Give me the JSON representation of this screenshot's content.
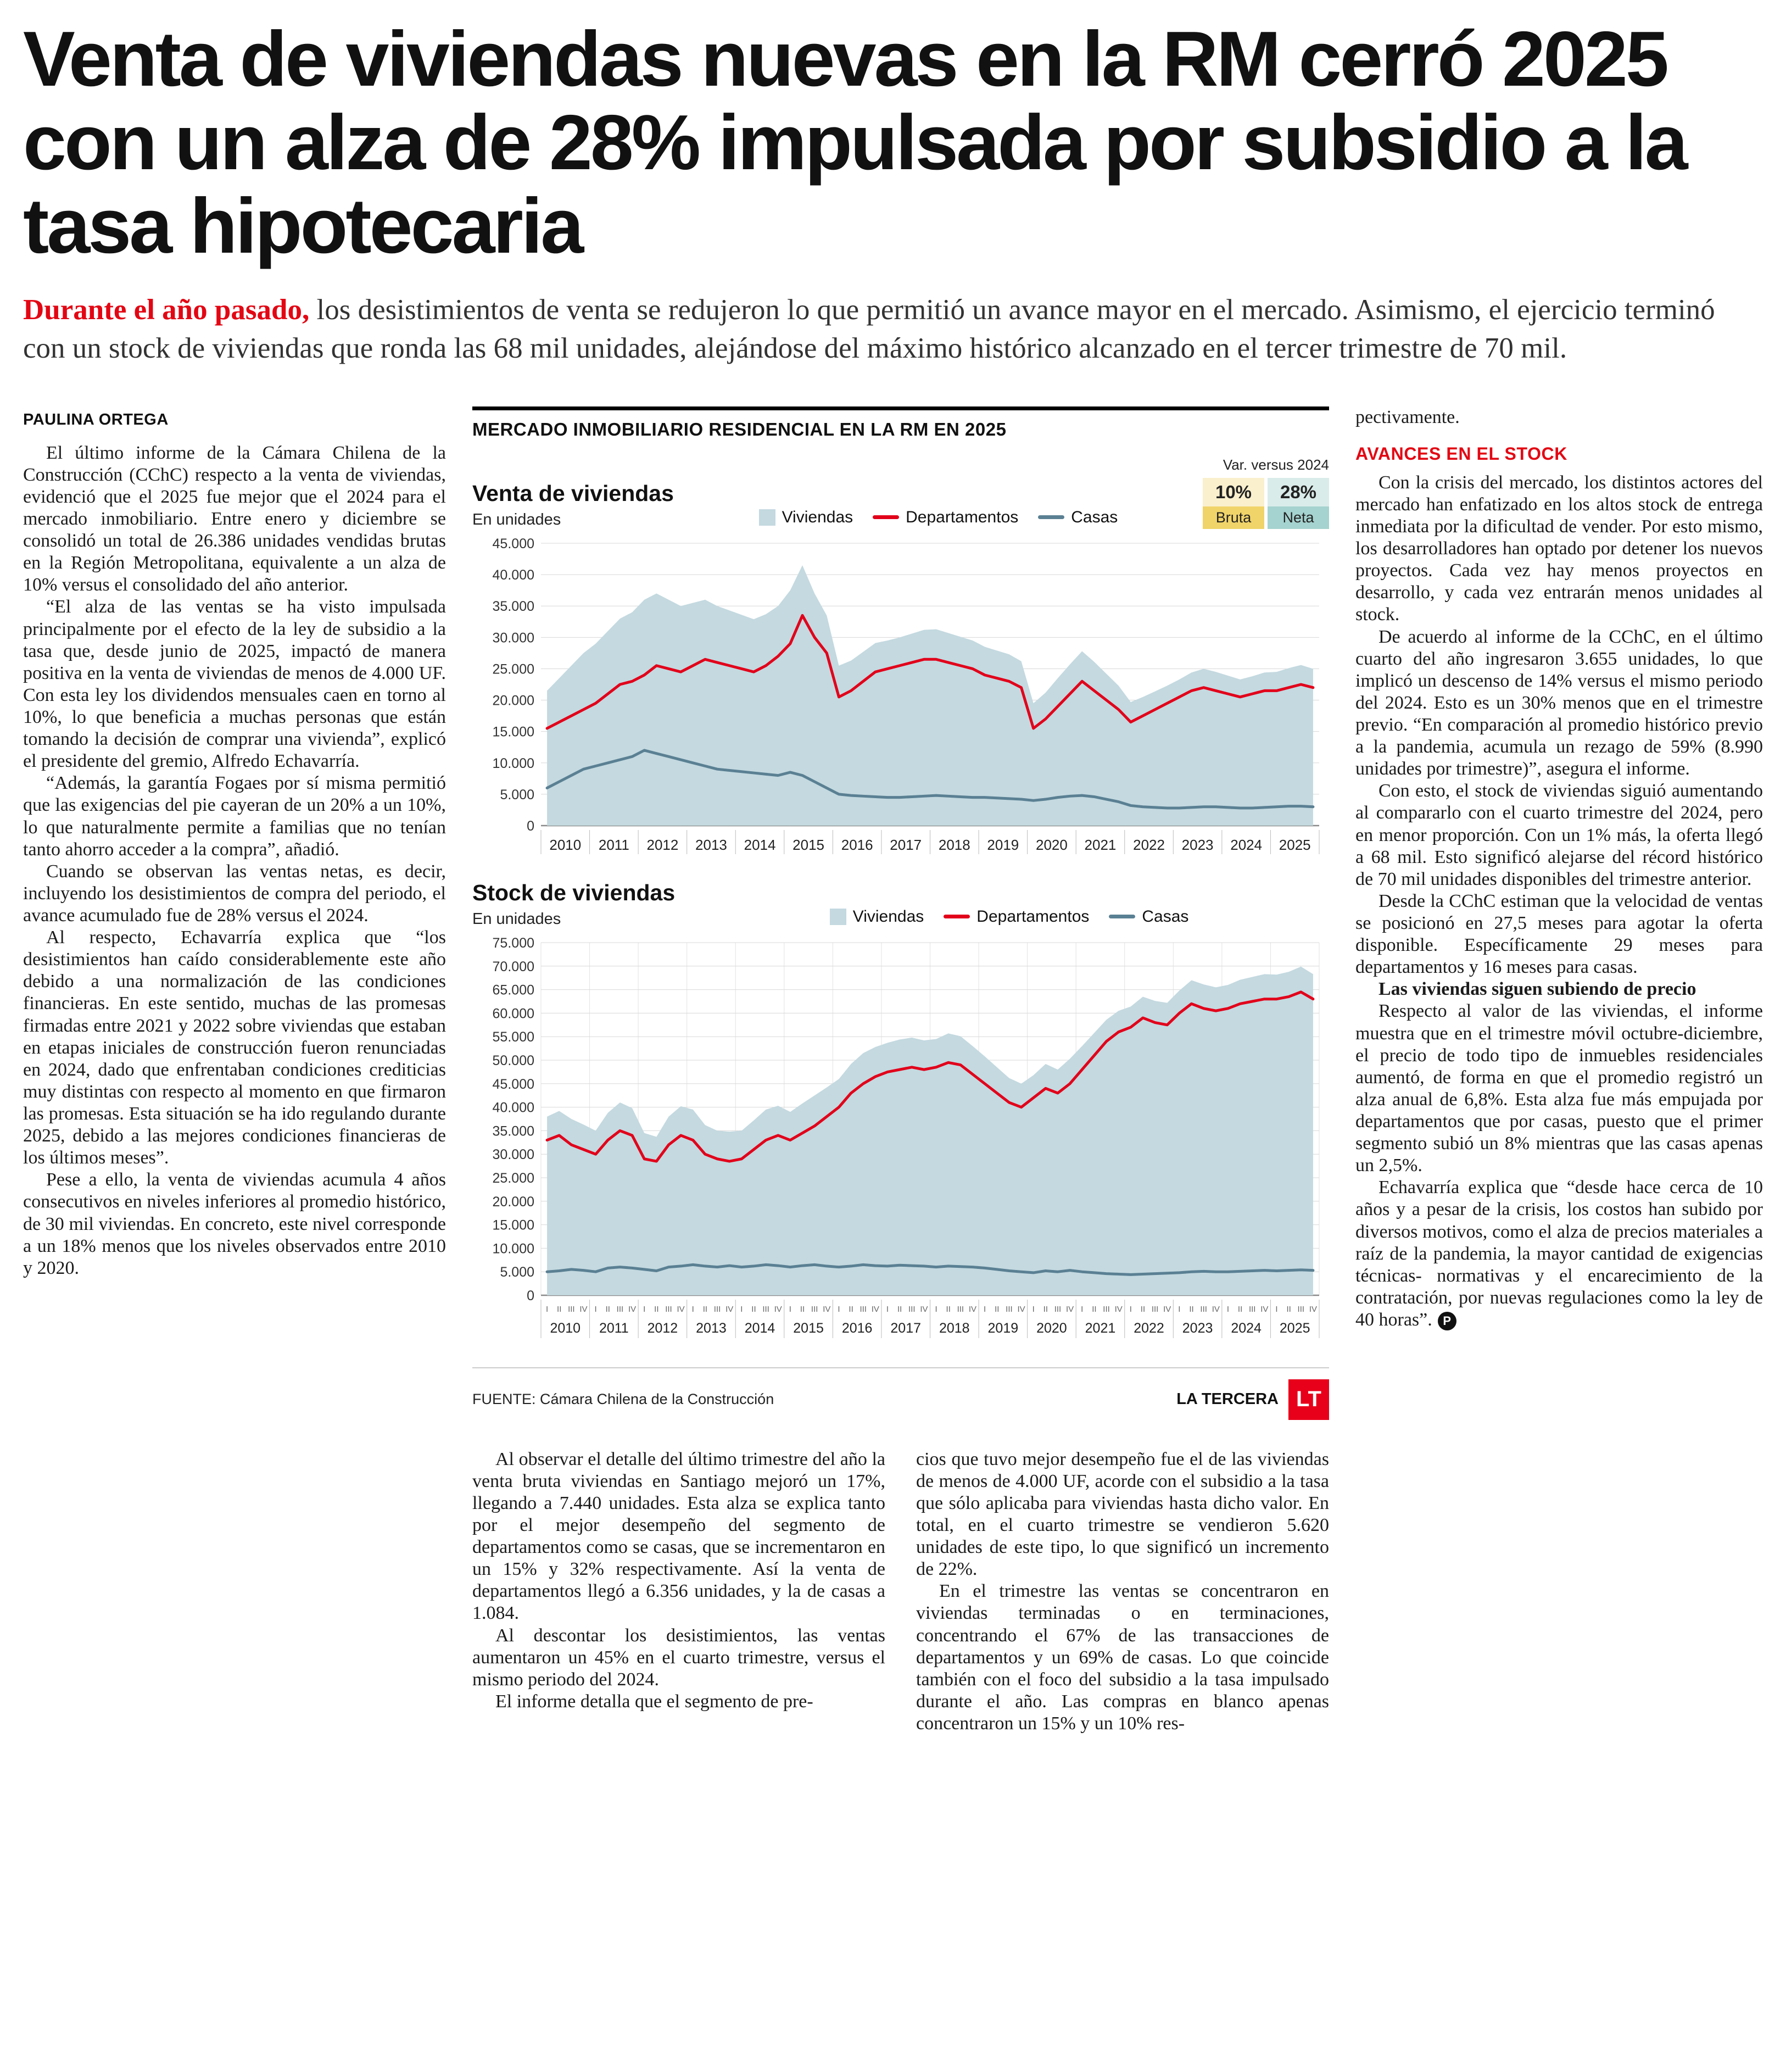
{
  "headline": "Venta de viviendas nuevas en la RM cerró 2025 con un alza de 28% impulsada por subsidio a la tasa hipotecaria",
  "lede": {
    "lead_in": "Durante el año pasado,",
    "text": " los desistimientos de venta se redujeron lo que permitió un avance mayor en el mercado. Asimismo, el ejercicio terminó con un stock de viviendas que ronda las 68 mil unidades, alejándose del máximo histórico alcanzado en el tercer trimestre de 70 mil."
  },
  "byline": "PAULINA ORTEGA",
  "colors": {
    "accent_red": "#e30613",
    "area": "#c4d9e0",
    "departamentos": "#e2001a",
    "casas": "#5a8093",
    "badge_bruta": "#f0d469",
    "badge_bruta_light": "#faf0cd",
    "badge_neta": "#a5d3cf",
    "badge_neta_light": "#daecea",
    "logo_red": "#e8001b"
  },
  "article": {
    "left_column": [
      "El último informe de la Cámara Chilena de la Construcción (CChC) respecto a la venta de viviendas, evidenció que el 2025 fue mejor que el 2024 para el mercado inmobiliario. Entre enero y diciembre se consolidó un total de 26.386 unidades vendidas brutas en la Región Metropolitana, equivalente a un alza de 10% versus el consolidado del año anterior.",
      "“El alza de las ventas se ha visto impulsada principalmente por el efecto de la ley de subsidio a la tasa que, desde junio de 2025, impactó de manera positiva en la venta de viviendas de menos de 4.000 UF. Con esta ley los dividendos mensuales caen en torno al 10%, lo que beneficia a muchas personas que están tomando la decisión de comprar una vivienda”, explicó el presidente del gremio, Alfredo Echavarría.",
      "“Además, la garantía Fogaes por sí misma permitió que las exigencias del pie cayeran de un 20% a un 10%, lo que naturalmente permite a familias que no tenían tanto ahorro acceder a la compra”, añadió.",
      "Cuando se observan las ventas netas, es decir, incluyendo los desistimientos de compra del periodo, el avance acumulado fue de 28% versus el 2024.",
      "Al respecto, Echavarría explica que “los desistimientos han caído considerablemente este año debido a una normalización de las condiciones financieras. En este sentido, muchas de las promesas firmadas entre 2021 y 2022 sobre viviendas que estaban en etapas iniciales de construcción fueron renunciadas en 2024, dado que enfrentaban condiciones crediticias muy distintas con respecto al momento en que firmaron las promesas. Esta situación se ha ido regulando durante 2025, debido a las mejores condiciones financieras de los últimos meses”.",
      "Pese a ello, la venta de viviendas acumula 4 años consecutivos en niveles inferiores al promedio histórico, de 30 mil viviendas. En concreto, este nivel corresponde a un 18% menos que los niveles observados entre 2010 y 2020."
    ],
    "bottom_col1": [
      "Al observar el detalle del último trimestre del año la venta bruta viviendas en Santiago mejoró un 17%, llegando a 7.440 unidades. Esta alza se explica tanto por el mejor desempeño del segmento de departamentos como se casas, que se incrementaron en un 15% y 32% respectivamente. Así la venta de departamentos llegó a 6.356 unidades, y la de casas a 1.084.",
      "Al descontar los desistimientos, las ventas aumentaron un 45% en el cuarto trimestre, versus el mismo periodo del 2024.",
      "El informe detalla que el segmento de pre-"
    ],
    "bottom_col2": [
      "cios que tuvo mejor desempeño fue el de las viviendas de menos de 4.000 UF, acorde con el subsidio a la tasa que sólo aplicaba para viviendas hasta dicho valor. En total, en el cuarto trimestre se vendieron 5.620 unidades de este tipo, lo que significó un incremento de 22%.",
      "En el trimestre las ventas se concentraron en viviendas terminadas o en terminaciones, concentrando el 67% de las transacciones de departamentos y un 69% de casas. Lo que coincide también con el foco del subsidio a la tasa impulsado durante el año. Las compras en blanco apenas concentraron un 15% y un 10% res-"
    ],
    "right_column": {
      "continuation": "pectivamente.",
      "subhead": "AVANCES EN EL STOCK",
      "paragraphs_a": [
        "Con la crisis del mercado, los distintos actores del mercado han enfatizado en los altos stock de entrega inmediata por la dificultad de vender. Por esto mismo, los desarrolladores han optado por detener los nuevos proyectos. Cada vez hay menos proyectos en desarrollo, y cada vez entrarán menos unidades al stock.",
        "De acuerdo al informe de la CChC, en el último cuarto del año ingresaron 3.655 unidades, lo que implicó un descenso de 14% versus el mismo periodo del 2024. Esto es un 30% menos que en el trimestre previo. “En comparación al promedio histórico previo a la pandemia, acumula un rezago de 59% (8.990 unidades por trimestre)”, asegura el informe.",
        "Con esto, el stock de viviendas siguió aumentando al compararlo con el cuarto trimestre del 2024, pero en menor proporción. Con un 1% más, la oferta llegó a 68 mil. Esto significó alejarse del récord histórico de 70 mil unidades disponibles del trimestre anterior.",
        "Desde la CChC estiman que la velocidad de ventas se posicionó en 27,5 meses para agotar la oferta disponible. Específicamente 29 meses para departamentos y 16 meses para casas."
      ],
      "mini_subhead": "Las viviendas siguen subiendo de precio",
      "paragraphs_b": [
        "Respecto al valor de las viviendas, el informe muestra que en el trimestre móvil octubre-diciembre, el precio de todo tipo de inmuebles residenciales aumentó, de forma en que el promedio registró un alza anual de 6,8%. Esta alza fue más empujada por departamentos que por casas, puesto que el primer segmento subió un 8% mientras que las casas apenas un 2,5%.",
        "Echavarría explica que “desde hace cerca de 10 años y a pesar de la crisis, los costos han subido por diversos motivos, como el alza de precios materiales a raíz de la pandemia, la mayor cantidad de exigencias técnicas- normativas y el encarecimiento de la contratación, por nuevas regulaciones como la ley de 40 horas”."
      ],
      "end_mark": "P"
    }
  },
  "infographic": {
    "title": "MERCADO INMOBILIARIO RESIDENCIAL EN LA RM EN 2025",
    "var_badge": {
      "label": "Var. versus 2024",
      "bruta_value": "10%",
      "bruta_label": "Bruta",
      "neta_value": "28%",
      "neta_label": "Neta"
    },
    "source": "FUENTE: Cámara Chilena de la Construcción",
    "credit": "LA TERCERA",
    "logo": "LT"
  },
  "chart_data": [
    {
      "type": "area",
      "title": "Venta de viviendas",
      "subtitle": "En unidades",
      "quarter_ticks": false,
      "ylim": [
        0,
        45000
      ],
      "ytick_step": 5000,
      "x_years": [
        "2010",
        "2011",
        "2012",
        "2013",
        "2014",
        "2015",
        "2016",
        "2017",
        "2018",
        "2019",
        "2020",
        "2021",
        "2022",
        "2023",
        "2024",
        "2025"
      ],
      "legend": [
        {
          "name": "Viviendas",
          "type": "area",
          "color": "#c4d9e0"
        },
        {
          "name": "Departamentos",
          "type": "line",
          "color": "#e2001a"
        },
        {
          "name": "Casas",
          "type": "line",
          "color": "#5a8093"
        }
      ],
      "series": {
        "viviendas": [
          21500,
          23500,
          25500,
          27500,
          29000,
          31000,
          33000,
          34000,
          36000,
          37000,
          36000,
          35000,
          35500,
          36000,
          35000,
          34300,
          33600,
          32900,
          33700,
          35000,
          37500,
          41500,
          37000,
          33500,
          25500,
          26300,
          27700,
          29100,
          29500,
          30000,
          30600,
          31200,
          31300,
          30700,
          30100,
          29500,
          28500,
          27900,
          27300,
          26200,
          19500,
          21200,
          23500,
          25700,
          27800,
          26100,
          24200,
          22300,
          19700,
          20500,
          21400,
          22300,
          23300,
          24400,
          25000,
          24500,
          23900,
          23300,
          23800,
          24400,
          24500,
          25100,
          25600,
          25000
        ],
        "departamentos": [
          15500,
          16500,
          17500,
          18500,
          19500,
          21000,
          22500,
          23000,
          24000,
          25500,
          25000,
          24500,
          25500,
          26500,
          26000,
          25500,
          25000,
          24500,
          25500,
          27000,
          29000,
          33500,
          30000,
          27500,
          20500,
          21500,
          23000,
          24500,
          25000,
          25500,
          26000,
          26500,
          26500,
          26000,
          25500,
          25000,
          24000,
          23500,
          23000,
          22000,
          15500,
          17000,
          19000,
          21000,
          23000,
          21500,
          20000,
          18500,
          16500,
          17500,
          18500,
          19500,
          20500,
          21500,
          22000,
          21500,
          21000,
          20500,
          21000,
          21500,
          21500,
          22000,
          22500,
          22000
        ],
        "casas": [
          6000,
          7000,
          8000,
          9000,
          9500,
          10000,
          10500,
          11000,
          12000,
          11500,
          11000,
          10500,
          10000,
          9500,
          9000,
          8800,
          8600,
          8400,
          8200,
          8000,
          8500,
          8000,
          7000,
          6000,
          5000,
          4800,
          4700,
          4600,
          4500,
          4500,
          4600,
          4700,
          4800,
          4700,
          4600,
          4500,
          4500,
          4400,
          4300,
          4200,
          4000,
          4200,
          4500,
          4700,
          4800,
          4600,
          4200,
          3800,
          3200,
          3000,
          2900,
          2800,
          2800,
          2900,
          3000,
          3000,
          2900,
          2800,
          2800,
          2900,
          3000,
          3100,
          3100,
          3000
        ]
      }
    },
    {
      "type": "area",
      "title": "Stock de viviendas",
      "subtitle": "En unidades",
      "quarter_ticks": true,
      "ylim": [
        0,
        75000
      ],
      "ytick_step": 5000,
      "x_years": [
        "2010",
        "2011",
        "2012",
        "2013",
        "2014",
        "2015",
        "2016",
        "2017",
        "2018",
        "2019",
        "2020",
        "2021",
        "2022",
        "2023",
        "2024",
        "2025"
      ],
      "legend": [
        {
          "name": "Viviendas",
          "type": "area",
          "color": "#c4d9e0"
        },
        {
          "name": "Departamentos",
          "type": "line",
          "color": "#e2001a"
        },
        {
          "name": "Casas",
          "type": "line",
          "color": "#5a8093"
        }
      ],
      "series": {
        "viviendas": [
          38000,
          39200,
          37500,
          36300,
          35000,
          38800,
          41000,
          39800,
          34500,
          33700,
          38000,
          40200,
          39500,
          36200,
          35000,
          34800,
          35000,
          37200,
          39500,
          40300,
          39000,
          40800,
          42500,
          44200,
          46000,
          49200,
          51500,
          52800,
          53700,
          54400,
          54800,
          54200,
          54500,
          55700,
          55100,
          53000,
          50800,
          48500,
          46200,
          45000,
          46800,
          49200,
          48000,
          50300,
          53000,
          55800,
          58600,
          60500,
          61400,
          63500,
          62600,
          62200,
          64800,
          67000,
          66100,
          65500,
          66000,
          67100,
          67700,
          68300,
          68200,
          68800,
          69900,
          68300
        ],
        "departamentos": [
          33000,
          34000,
          32000,
          31000,
          30000,
          33000,
          35000,
          34000,
          29000,
          28500,
          32000,
          34000,
          33000,
          30000,
          29000,
          28500,
          29000,
          31000,
          33000,
          34000,
          33000,
          34500,
          36000,
          38000,
          40000,
          43000,
          45000,
          46500,
          47500,
          48000,
          48500,
          48000,
          48500,
          49500,
          49000,
          47000,
          45000,
          43000,
          41000,
          40000,
          42000,
          44000,
          43000,
          45000,
          48000,
          51000,
          54000,
          56000,
          57000,
          59000,
          58000,
          57500,
          60000,
          62000,
          61000,
          60500,
          61000,
          62000,
          62500,
          63000,
          63000,
          63500,
          64500,
          63000
        ],
        "casas": [
          5000,
          5200,
          5500,
          5300,
          5000,
          5800,
          6000,
          5800,
          5500,
          5200,
          6000,
          6200,
          6500,
          6200,
          6000,
          6300,
          6000,
          6200,
          6500,
          6300,
          6000,
          6300,
          6500,
          6200,
          6000,
          6200,
          6500,
          6300,
          6200,
          6400,
          6300,
          6200,
          6000,
          6200,
          6100,
          6000,
          5800,
          5500,
          5200,
          5000,
          4800,
          5200,
          5000,
          5300,
          5000,
          4800,
          4600,
          4500,
          4400,
          4500,
          4600,
          4700,
          4800,
          5000,
          5100,
          5000,
          5000,
          5100,
          5200,
          5300,
          5200,
          5300,
          5400,
          5300
        ]
      }
    }
  ]
}
